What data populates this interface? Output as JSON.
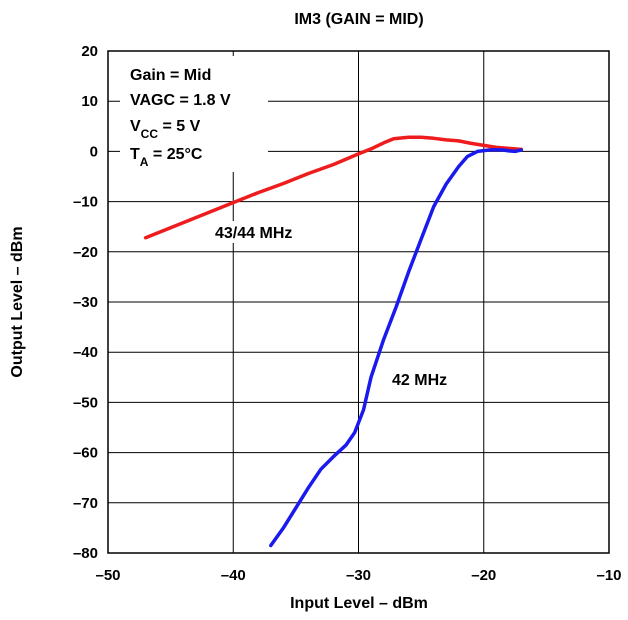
{
  "chart_data": {
    "type": "line",
    "title": "IM3 (GAIN = MID)",
    "xlabel": "Input Level – dBm",
    "ylabel": "Output Level – dBm",
    "xlim": [
      -50,
      -10
    ],
    "ylim": [
      -80,
      20
    ],
    "xticks": [
      -50,
      -40,
      -30,
      -20,
      -10
    ],
    "yticks": [
      20,
      10,
      0,
      -10,
      -20,
      -30,
      -40,
      -50,
      -60,
      -70,
      -80
    ],
    "x_tick_labels": [
      "–50",
      "–40",
      "–30",
      "–20",
      "–10"
    ],
    "y_tick_labels": [
      "20",
      "10",
      "0",
      "–10",
      "–20",
      "–30",
      "–40",
      "–50",
      "–60",
      "–70",
      "–80"
    ],
    "grid": true,
    "conditions": [
      "Gain = Mid",
      "VAGC = 1.8 V",
      "VCC = 5 V",
      "TA = 25°C"
    ],
    "series": [
      {
        "name": "43/44 MHz",
        "color": "#ee1c1c",
        "points": [
          [
            -47,
            -17.2
          ],
          [
            -44,
            -14.2
          ],
          [
            -41,
            -11.2
          ],
          [
            -38,
            -8.2
          ],
          [
            -36,
            -6.4
          ],
          [
            -34,
            -4.4
          ],
          [
            -32,
            -2.6
          ],
          [
            -30,
            -0.5
          ],
          [
            -29,
            0.5
          ],
          [
            -28,
            1.7
          ],
          [
            -27.2,
            2.5
          ],
          [
            -26,
            2.8
          ],
          [
            -25,
            2.8
          ],
          [
            -24,
            2.6
          ],
          [
            -23,
            2.3
          ],
          [
            -22,
            2.1
          ],
          [
            -21,
            1.6
          ],
          [
            -20,
            1.2
          ],
          [
            -19,
            0.8
          ],
          [
            -18,
            0.6
          ],
          [
            -17,
            0.4
          ]
        ]
      },
      {
        "name": "42 MHz",
        "color": "#1a1aee",
        "points": [
          [
            -37,
            -78.5
          ],
          [
            -36,
            -75
          ],
          [
            -35,
            -71
          ],
          [
            -34,
            -67
          ],
          [
            -33,
            -63.3
          ],
          [
            -32,
            -60.8
          ],
          [
            -31,
            -58.5
          ],
          [
            -30.3,
            -56
          ],
          [
            -29.6,
            -51.5
          ],
          [
            -29,
            -45
          ],
          [
            -28,
            -37.5
          ],
          [
            -27,
            -31
          ],
          [
            -26,
            -24
          ],
          [
            -25,
            -17.5
          ],
          [
            -24,
            -11
          ],
          [
            -23,
            -6.5
          ],
          [
            -22,
            -3
          ],
          [
            -21.3,
            -1
          ],
          [
            -20.5,
            0
          ],
          [
            -19.5,
            0.3
          ],
          [
            -18.5,
            0.3
          ],
          [
            -18,
            0.1
          ],
          [
            -17.5,
            0
          ],
          [
            -17,
            0.3
          ]
        ]
      }
    ]
  }
}
